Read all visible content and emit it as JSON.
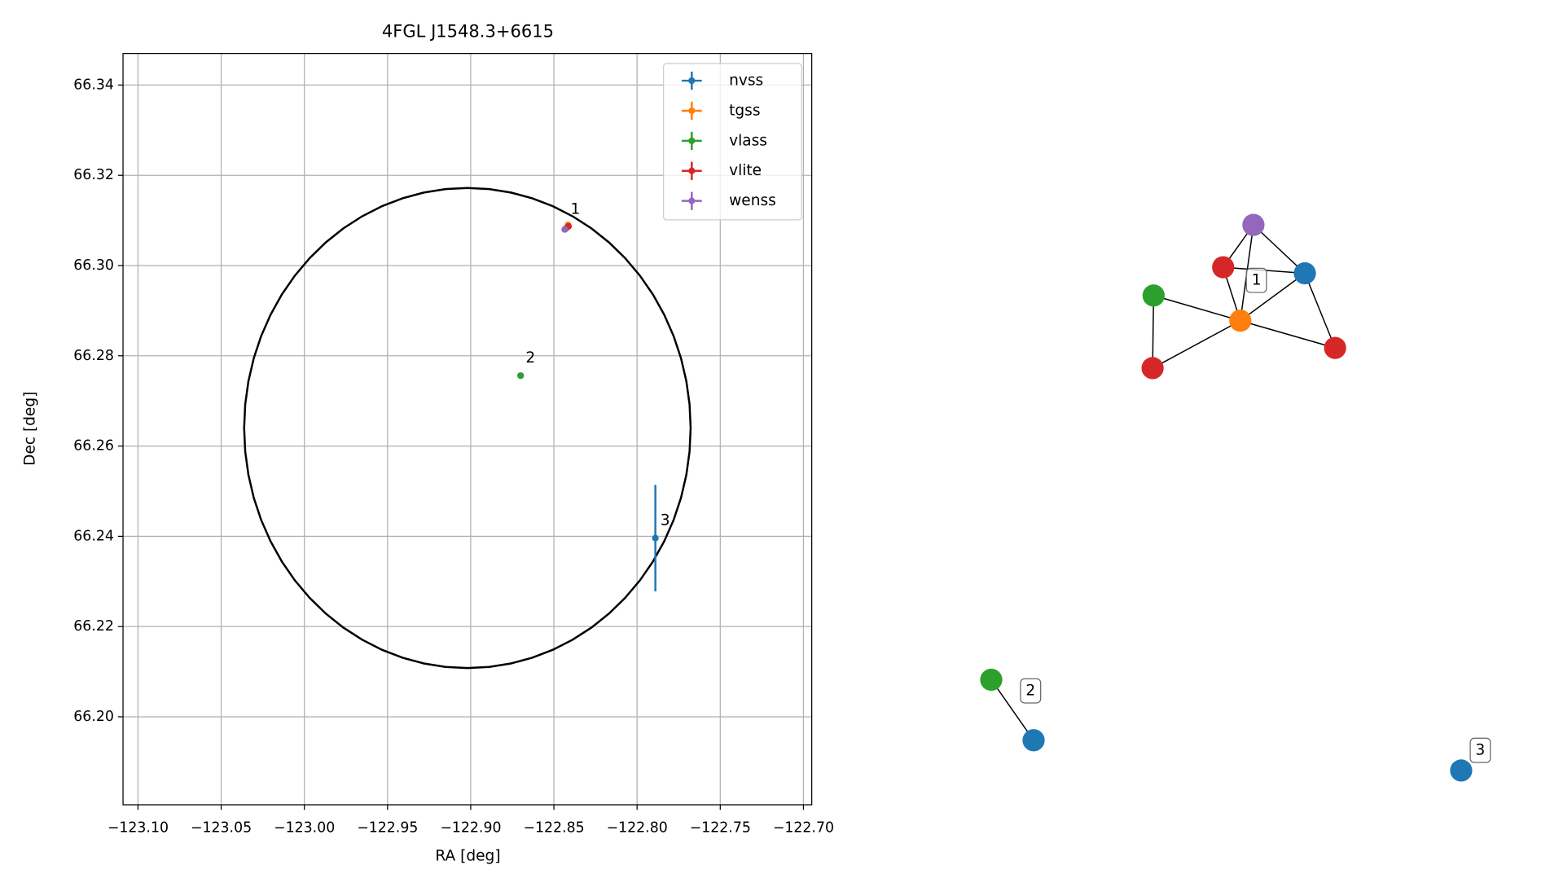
{
  "chart_data": [
    {
      "type": "scatter",
      "title": "4FGL J1548.3+6615",
      "x_label": "RA [deg]",
      "y_label": "Dec [deg]",
      "xlim": [
        -123.109,
        -122.695
      ],
      "ylim": [
        66.1805,
        66.347
      ],
      "xticks": [
        {
          "value": -123.1,
          "label": "−123.10"
        },
        {
          "value": -123.05,
          "label": "−123.05"
        },
        {
          "value": -123.0,
          "label": "−123.00"
        },
        {
          "value": -122.95,
          "label": "−122.95"
        },
        {
          "value": -122.9,
          "label": "−122.90"
        },
        {
          "value": -122.85,
          "label": "−122.85"
        },
        {
          "value": -122.8,
          "label": "−122.80"
        },
        {
          "value": -122.75,
          "label": "−122.75"
        },
        {
          "value": -122.7,
          "label": "−122.70"
        }
      ],
      "yticks": [
        {
          "value": 66.2,
          "label": "66.20"
        },
        66.22,
        66.24,
        66.26,
        66.28,
        {
          "value": 66.3,
          "label": "66.30"
        },
        66.32,
        66.34
      ],
      "grid": true,
      "legend": "upper right",
      "region": {
        "center": [
          -122.902,
          66.264
        ],
        "radius_x": 0.1342,
        "radius_y": 0.0532,
        "color": "#000000"
      },
      "series": [
        {
          "name": "nvss",
          "color": "#1f77b4",
          "x": [
            -122.8425,
            -122.87,
            -122.789
          ],
          "values": [
            66.3083,
            66.2756,
            66.2396
          ],
          "yerr": [
            0.0004,
            0.0004,
            0.0118
          ]
        },
        {
          "name": "tgss",
          "color": "#ff7f0e",
          "x": [
            -122.8415
          ],
          "values": [
            66.309
          ]
        },
        {
          "name": "vlass",
          "color": "#2ca02c",
          "x": [
            -122.8428,
            -122.87
          ],
          "values": [
            66.3082,
            66.2756
          ]
        },
        {
          "name": "vlite",
          "color": "#d62728",
          "x": [
            -122.8412
          ],
          "values": [
            66.3087
          ]
        },
        {
          "name": "wenss",
          "color": "#9467bd",
          "x": [
            -122.8435
          ],
          "values": [
            66.308
          ]
        }
      ],
      "annotations": [
        {
          "text": "1",
          "x": -122.84,
          "y": 66.3125
        },
        {
          "text": "2",
          "x": -122.867,
          "y": 66.2795
        },
        {
          "text": "3",
          "x": -122.786,
          "y": 66.2435
        }
      ]
    },
    {
      "type": "graph",
      "nodes": [
        {
          "color": "#9467bd"
        },
        {
          "color": "#d62728"
        },
        {
          "color": "#1f77b4"
        },
        {
          "color": "#2ca02c"
        },
        {
          "color": "#ff7f0e"
        },
        {
          "color": "#d62728"
        },
        {
          "color": "#d62728"
        },
        {
          "color": "#2ca02c"
        },
        {
          "color": "#1f77b4"
        },
        {
          "color": "#1f77b4"
        }
      ],
      "edges": [
        [
          0,
          1
        ],
        [
          0,
          2
        ],
        [
          0,
          4
        ],
        [
          1,
          2
        ],
        [
          1,
          4
        ],
        [
          2,
          4
        ],
        [
          2,
          5
        ],
        [
          3,
          4
        ],
        [
          3,
          6
        ],
        [
          4,
          5
        ],
        [
          4,
          6
        ],
        [
          7,
          8
        ]
      ],
      "labels": [
        "1",
        "2",
        "3"
      ]
    }
  ]
}
